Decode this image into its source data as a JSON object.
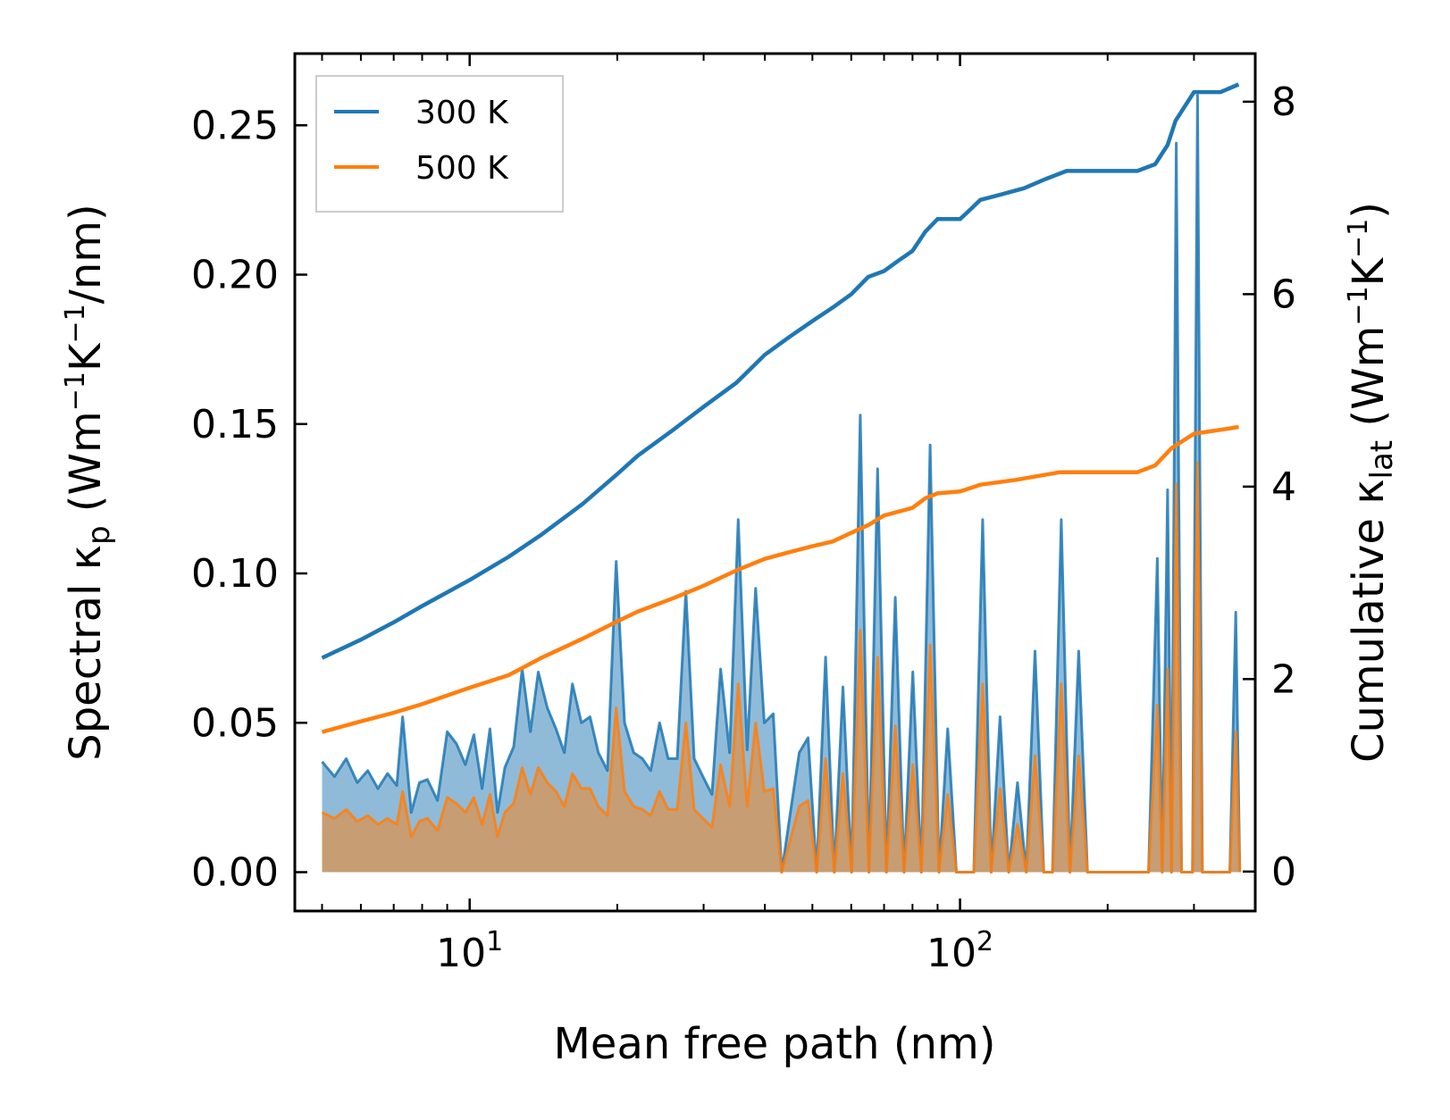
{
  "chart_data": {
    "type": "line",
    "title": "",
    "xlabel": "Mean free path (nm)",
    "xscale": "log",
    "xlim": [
      4.4,
      400
    ],
    "x_ticks": [
      {
        "value": 10,
        "base": "10",
        "exp": "1"
      },
      {
        "value": 100,
        "base": "10",
        "exp": "2"
      }
    ],
    "y_left": {
      "label": "Spectral κp (Wm⁻¹K⁻¹/nm)",
      "label_parts": {
        "prefix": "Spectral κ",
        "sub": "p",
        "mid": " (Wm",
        "exp1": "−1",
        "mid2": "K",
        "exp2": "−1",
        "suffix": "/nm)"
      },
      "ylim": [
        -0.013,
        0.274
      ],
      "ticks": [
        {
          "value": 0.0,
          "label": "0.00"
        },
        {
          "value": 0.05,
          "label": "0.05"
        },
        {
          "value": 0.1,
          "label": "0.10"
        },
        {
          "value": 0.15,
          "label": "0.15"
        },
        {
          "value": 0.2,
          "label": "0.20"
        },
        {
          "value": 0.25,
          "label": "0.25"
        }
      ]
    },
    "y_right": {
      "label": "Cumulative κlat (Wm⁻¹K⁻¹)",
      "label_parts": {
        "prefix": "Cumulative κ",
        "sub": "lat",
        "mid": " (Wm",
        "exp1": "−1",
        "mid2": "K",
        "exp2": "−1",
        "suffix": ")"
      },
      "ylim": [
        -0.41,
        8.5
      ],
      "ticks": [
        {
          "value": 0,
          "label": "0"
        },
        {
          "value": 2,
          "label": "2"
        },
        {
          "value": 4,
          "label": "4"
        },
        {
          "value": 6,
          "label": "6"
        },
        {
          "value": 8,
          "label": "8"
        }
      ]
    },
    "legend": {
      "position": "top-left",
      "entries": [
        {
          "label": "300 K",
          "color": "#1f77b4"
        },
        {
          "label": "500 K",
          "color": "#ff7f0e"
        }
      ]
    },
    "cumulative_series": [
      {
        "name": "300 K",
        "color": "#1f77b4",
        "axis": "right",
        "x": [
          5.0,
          6.0,
          7.0,
          8.0,
          10.0,
          12.0,
          14.0,
          17.0,
          20.0,
          22.0,
          26.0,
          30.0,
          35.0,
          40.0,
          45.0,
          50.0,
          55.0,
          60.0,
          65.0,
          70.0,
          75.0,
          80.0,
          85.0,
          90.0,
          100.0,
          105.0,
          110.0,
          120.0,
          135.0,
          150.0,
          165.0,
          190.0,
          230.0,
          250.0,
          265.0,
          275.0,
          300.0,
          340.0,
          370.0
        ],
        "y": [
          2.22,
          2.41,
          2.59,
          2.76,
          3.03,
          3.27,
          3.5,
          3.82,
          4.13,
          4.32,
          4.59,
          4.83,
          5.08,
          5.37,
          5.56,
          5.72,
          5.86,
          6.0,
          6.18,
          6.24,
          6.35,
          6.45,
          6.65,
          6.78,
          6.78,
          6.88,
          6.98,
          7.03,
          7.1,
          7.2,
          7.28,
          7.28,
          7.28,
          7.35,
          7.55,
          7.8,
          8.1,
          8.1,
          8.18
        ]
      },
      {
        "name": "500 K",
        "color": "#ff7f0e",
        "axis": "right",
        "x": [
          5.0,
          6.0,
          7.0,
          8.0,
          10.0,
          12.0,
          14.0,
          17.0,
          20.0,
          22.0,
          26.0,
          30.0,
          35.0,
          40.0,
          45.0,
          50.0,
          55.0,
          60.0,
          65.0,
          70.0,
          80.0,
          85.0,
          90.0,
          100.0,
          110.0,
          130.0,
          160.0,
          230.0,
          250.0,
          270.0,
          300.0,
          350.0,
          370.0
        ],
        "y": [
          1.45,
          1.56,
          1.65,
          1.74,
          1.91,
          2.04,
          2.22,
          2.42,
          2.6,
          2.7,
          2.84,
          2.97,
          3.13,
          3.25,
          3.32,
          3.38,
          3.43,
          3.52,
          3.6,
          3.7,
          3.78,
          3.88,
          3.93,
          3.95,
          4.02,
          4.07,
          4.15,
          4.15,
          4.22,
          4.4,
          4.55,
          4.6,
          4.62
        ]
      }
    ],
    "spectral_series": [
      {
        "name": "300 K",
        "color": "#1f77b4",
        "axis": "left",
        "style": "filled",
        "points": [
          [
            5.0,
            0.037
          ],
          [
            5.3,
            0.032
          ],
          [
            5.6,
            0.038
          ],
          [
            5.9,
            0.03
          ],
          [
            6.2,
            0.034
          ],
          [
            6.5,
            0.028
          ],
          [
            6.8,
            0.033
          ],
          [
            7.1,
            0.029
          ],
          [
            7.3,
            0.052
          ],
          [
            7.6,
            0.02
          ],
          [
            7.9,
            0.03
          ],
          [
            8.2,
            0.031
          ],
          [
            8.6,
            0.024
          ],
          [
            9.0,
            0.047
          ],
          [
            9.4,
            0.043
          ],
          [
            9.8,
            0.036
          ],
          [
            10.2,
            0.046
          ],
          [
            10.6,
            0.028
          ],
          [
            11.0,
            0.048
          ],
          [
            11.4,
            0.02
          ],
          [
            11.8,
            0.035
          ],
          [
            12.3,
            0.042
          ],
          [
            12.8,
            0.068
          ],
          [
            13.3,
            0.047
          ],
          [
            13.8,
            0.067
          ],
          [
            14.4,
            0.055
          ],
          [
            15.0,
            0.048
          ],
          [
            15.6,
            0.04
          ],
          [
            16.2,
            0.063
          ],
          [
            16.9,
            0.05
          ],
          [
            17.6,
            0.052
          ],
          [
            18.3,
            0.04
          ],
          [
            19.1,
            0.034
          ],
          [
            19.9,
            0.104
          ],
          [
            20.7,
            0.05
          ],
          [
            21.6,
            0.04
          ],
          [
            22.5,
            0.038
          ],
          [
            23.4,
            0.034
          ],
          [
            24.4,
            0.05
          ],
          [
            25.4,
            0.038
          ],
          [
            26.5,
            0.038
          ],
          [
            27.6,
            0.094
          ],
          [
            28.7,
            0.038
          ],
          [
            29.9,
            0.032
          ],
          [
            31.2,
            0.026
          ],
          [
            32.5,
            0.068
          ],
          [
            33.9,
            0.04
          ],
          [
            35.3,
            0.118
          ],
          [
            36.8,
            0.041
          ],
          [
            38.3,
            0.095
          ],
          [
            39.9,
            0.05
          ],
          [
            41.6,
            0.053
          ],
          [
            43.3,
            0.0
          ],
          [
            45.1,
            0.02
          ],
          [
            47.0,
            0.04
          ],
          [
            49.0,
            0.045
          ],
          [
            51.0,
            0.0
          ],
          [
            53.2,
            0.072
          ],
          [
            55.4,
            0.0
          ],
          [
            57.7,
            0.062
          ],
          [
            60.1,
            0.0
          ],
          [
            62.6,
            0.153
          ],
          [
            65.2,
            0.0
          ],
          [
            67.9,
            0.135
          ],
          [
            70.8,
            0.0
          ],
          [
            73.8,
            0.092
          ],
          [
            76.9,
            0.0
          ],
          [
            80.1,
            0.067
          ],
          [
            83.4,
            0.0
          ],
          [
            86.9,
            0.143
          ],
          [
            90.6,
            0.0
          ],
          [
            94.4,
            0.048
          ],
          [
            98.3,
            0.0
          ],
          [
            102.4,
            0.0
          ],
          [
            106.7,
            0.0
          ],
          [
            111.2,
            0.118
          ],
          [
            115.8,
            0.0
          ],
          [
            120.7,
            0.052
          ],
          [
            125.7,
            0.0
          ],
          [
            131.0,
            0.03
          ],
          [
            136.5,
            0.0
          ],
          [
            142.2,
            0.074
          ],
          [
            148.2,
            0.0
          ],
          [
            154.4,
            0.0
          ],
          [
            160.9,
            0.118
          ],
          [
            167.6,
            0.0
          ],
          [
            174.6,
            0.074
          ],
          [
            181.9,
            0.0
          ],
          [
            189.5,
            0.0
          ],
          [
            197.5,
            0.0
          ],
          [
            205.7,
            0.0
          ],
          [
            214.3,
            0.0
          ],
          [
            223.3,
            0.0
          ],
          [
            232.7,
            0.0
          ],
          [
            242.4,
            0.0
          ],
          [
            252.6,
            0.105
          ],
          [
            258.5,
            0.0
          ],
          [
            265.0,
            0.128
          ],
          [
            270.0,
            0.0
          ],
          [
            276.0,
            0.244
          ],
          [
            283.0,
            0.0
          ],
          [
            290.0,
            0.0
          ],
          [
            298.0,
            0.0
          ],
          [
            305.0,
            0.26
          ],
          [
            312.0,
            0.0
          ],
          [
            330.0,
            0.0
          ],
          [
            355.0,
            0.0
          ],
          [
            365.0,
            0.087
          ],
          [
            372.0,
            0.0
          ]
        ]
      },
      {
        "name": "500 K",
        "color": "#ff7f0e",
        "axis": "left",
        "style": "filled",
        "points": [
          [
            5.0,
            0.02
          ],
          [
            5.3,
            0.018
          ],
          [
            5.6,
            0.021
          ],
          [
            5.9,
            0.017
          ],
          [
            6.2,
            0.019
          ],
          [
            6.5,
            0.016
          ],
          [
            6.8,
            0.018
          ],
          [
            7.1,
            0.016
          ],
          [
            7.3,
            0.027
          ],
          [
            7.6,
            0.012
          ],
          [
            7.9,
            0.017
          ],
          [
            8.2,
            0.018
          ],
          [
            8.6,
            0.014
          ],
          [
            9.0,
            0.025
          ],
          [
            9.4,
            0.023
          ],
          [
            9.8,
            0.02
          ],
          [
            10.2,
            0.025
          ],
          [
            10.6,
            0.016
          ],
          [
            11.0,
            0.026
          ],
          [
            11.4,
            0.012
          ],
          [
            11.8,
            0.02
          ],
          [
            12.3,
            0.023
          ],
          [
            12.8,
            0.035
          ],
          [
            13.3,
            0.026
          ],
          [
            13.8,
            0.035
          ],
          [
            14.4,
            0.03
          ],
          [
            15.0,
            0.027
          ],
          [
            15.6,
            0.022
          ],
          [
            16.2,
            0.033
          ],
          [
            16.9,
            0.028
          ],
          [
            17.6,
            0.028
          ],
          [
            18.3,
            0.022
          ],
          [
            19.1,
            0.019
          ],
          [
            19.9,
            0.055
          ],
          [
            20.7,
            0.027
          ],
          [
            21.6,
            0.022
          ],
          [
            22.5,
            0.021
          ],
          [
            23.4,
            0.019
          ],
          [
            24.4,
            0.027
          ],
          [
            25.4,
            0.021
          ],
          [
            26.5,
            0.021
          ],
          [
            27.6,
            0.05
          ],
          [
            28.7,
            0.021
          ],
          [
            29.9,
            0.018
          ],
          [
            31.2,
            0.015
          ],
          [
            32.5,
            0.036
          ],
          [
            33.9,
            0.022
          ],
          [
            35.3,
            0.063
          ],
          [
            36.8,
            0.022
          ],
          [
            38.3,
            0.05
          ],
          [
            39.9,
            0.027
          ],
          [
            41.6,
            0.028
          ],
          [
            43.3,
            0.0
          ],
          [
            45.1,
            0.011
          ],
          [
            47.0,
            0.022
          ],
          [
            49.0,
            0.024
          ],
          [
            51.0,
            0.0
          ],
          [
            53.2,
            0.038
          ],
          [
            55.4,
            0.0
          ],
          [
            57.7,
            0.033
          ],
          [
            60.1,
            0.0
          ],
          [
            62.6,
            0.081
          ],
          [
            65.2,
            0.0
          ],
          [
            67.9,
            0.072
          ],
          [
            70.8,
            0.0
          ],
          [
            73.8,
            0.049
          ],
          [
            76.9,
            0.0
          ],
          [
            80.1,
            0.036
          ],
          [
            83.4,
            0.0
          ],
          [
            86.9,
            0.076
          ],
          [
            90.6,
            0.0
          ],
          [
            94.4,
            0.026
          ],
          [
            98.3,
            0.0
          ],
          [
            102.4,
            0.0
          ],
          [
            106.7,
            0.0
          ],
          [
            111.2,
            0.063
          ],
          [
            115.8,
            0.0
          ],
          [
            120.7,
            0.028
          ],
          [
            125.7,
            0.0
          ],
          [
            131.0,
            0.016
          ],
          [
            136.5,
            0.0
          ],
          [
            142.2,
            0.039
          ],
          [
            148.2,
            0.0
          ],
          [
            154.4,
            0.0
          ],
          [
            160.9,
            0.063
          ],
          [
            167.6,
            0.0
          ],
          [
            174.6,
            0.039
          ],
          [
            181.9,
            0.0
          ],
          [
            189.5,
            0.0
          ],
          [
            197.5,
            0.0
          ],
          [
            205.7,
            0.0
          ],
          [
            214.3,
            0.0
          ],
          [
            223.3,
            0.0
          ],
          [
            232.7,
            0.0
          ],
          [
            242.4,
            0.0
          ],
          [
            252.6,
            0.056
          ],
          [
            258.5,
            0.0
          ],
          [
            265.0,
            0.068
          ],
          [
            270.0,
            0.0
          ],
          [
            276.0,
            0.13
          ],
          [
            283.0,
            0.0
          ],
          [
            290.0,
            0.0
          ],
          [
            298.0,
            0.0
          ],
          [
            305.0,
            0.137
          ],
          [
            312.0,
            0.0
          ],
          [
            330.0,
            0.0
          ],
          [
            355.0,
            0.0
          ],
          [
            365.0,
            0.047
          ],
          [
            372.0,
            0.0
          ]
        ]
      }
    ]
  }
}
